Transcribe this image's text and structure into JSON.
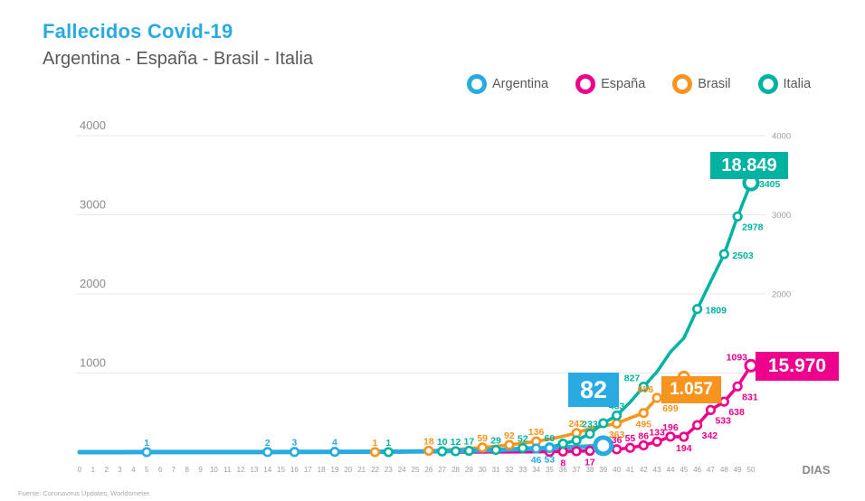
{
  "header": {
    "title": "Fallecidos Covid-19",
    "subtitle": "Argentina - España - Brasil - Italia"
  },
  "footer": {
    "source": "Fuente: Coronavirus Updates, Worldometer."
  },
  "axis": {
    "x_label": "DIAS",
    "x_ticks": [
      0,
      1,
      2,
      3,
      4,
      5,
      6,
      7,
      8,
      9,
      10,
      11,
      12,
      13,
      14,
      15,
      16,
      17,
      18,
      19,
      20,
      21,
      22,
      23,
      24,
      25,
      26,
      27,
      28,
      29,
      30,
      31,
      32,
      33,
      34,
      35,
      36,
      37,
      38,
      39,
      40,
      41,
      42,
      43,
      44,
      45,
      46,
      47,
      48,
      49,
      50
    ],
    "y_ticks": [
      1000,
      2000,
      3000,
      4000
    ]
  },
  "colors": {
    "grid": "#E8E8E8",
    "axis_text": "#898B8E",
    "axis_text_small": "#9B9DA0",
    "title": "#29ABE2",
    "subtitle": "#58595B"
  },
  "chart_data": {
    "type": "line",
    "title": "Fallecidos Covid-19",
    "subtitle": "Argentina - España - Brasil - Italia",
    "xlabel": "DIAS",
    "x_range": [
      0,
      50
    ],
    "ylim": [
      0,
      4000
    ],
    "grid": "horizontal",
    "legend_position": "top-right",
    "series": [
      {
        "name": "Argentina",
        "color": "#29ABE2",
        "width": 5,
        "callout": "82",
        "points": [
          {
            "d": 0,
            "v": 0
          },
          {
            "d": 5,
            "v": 1,
            "l": "1",
            "p": "a",
            "m": 1
          },
          {
            "d": 10,
            "v": 1
          },
          {
            "d": 14,
            "v": 2,
            "l": "2",
            "p": "a",
            "m": 1
          },
          {
            "d": 16,
            "v": 3,
            "l": "3",
            "p": "a",
            "m": 1
          },
          {
            "d": 19,
            "v": 4,
            "l": "4",
            "p": "a",
            "m": 1
          },
          {
            "d": 23,
            "v": 6
          },
          {
            "d": 27,
            "v": 12
          },
          {
            "d": 31,
            "v": 26
          },
          {
            "d": 34,
            "v": 46,
            "l": "46",
            "p": "b",
            "m": 1
          },
          {
            "d": 35,
            "v": 53,
            "l": "53",
            "p": "b",
            "m": 1
          },
          {
            "d": 37,
            "v": 64
          },
          {
            "d": 39,
            "v": 82,
            "m": "end"
          }
        ]
      },
      {
        "name": "España",
        "color": "#EC008C",
        "width": 3.5,
        "callout": "15.970",
        "points": [
          {
            "d": 28,
            "v": 0
          },
          {
            "d": 31,
            "v": 1
          },
          {
            "d": 33,
            "v": 3
          },
          {
            "d": 35,
            "v": 5,
            "m": 1
          },
          {
            "d": 36,
            "v": 8,
            "l": "8",
            "p": "b",
            "m": 1
          },
          {
            "d": 37,
            "v": 12,
            "m": 1
          },
          {
            "d": 38,
            "v": 17,
            "l": "17",
            "p": "b",
            "m": 1
          },
          {
            "d": 39,
            "v": 28,
            "m": 1
          },
          {
            "d": 40,
            "v": 36,
            "l": "36",
            "p": "a",
            "m": 1
          },
          {
            "d": 41,
            "v": 55,
            "l": "55",
            "p": "a",
            "m": 1
          },
          {
            "d": 42,
            "v": 86,
            "l": "86",
            "p": "a",
            "m": 1
          },
          {
            "d": 43,
            "v": 133,
            "l": "133",
            "p": "a",
            "m": 1
          },
          {
            "d": 44,
            "v": 196,
            "l": "196",
            "p": "a",
            "m": 1
          },
          {
            "d": 45,
            "v": 194,
            "l": "194",
            "p": "b",
            "m": 1
          },
          {
            "d": 46,
            "v": 342,
            "l": "342",
            "p": "br",
            "m": 1
          },
          {
            "d": 47,
            "v": 533,
            "l": "533",
            "p": "br",
            "m": 1
          },
          {
            "d": 48,
            "v": 638,
            "l": "638",
            "p": "br",
            "m": 1
          },
          {
            "d": 49,
            "v": 831,
            "l": "831",
            "p": "br",
            "m": 1
          },
          {
            "d": 50,
            "v": 1093,
            "l": "1093",
            "p": "tl",
            "m": "end"
          }
        ]
      },
      {
        "name": "Brasil",
        "color": "#F7941D",
        "width": 3.5,
        "callout": "1.057",
        "points": [
          {
            "d": 20,
            "v": 0
          },
          {
            "d": 22,
            "v": 1,
            "l": "1",
            "p": "a",
            "m": 1
          },
          {
            "d": 24,
            "v": 4
          },
          {
            "d": 26,
            "v": 18,
            "l": "18",
            "p": "a",
            "m": 1
          },
          {
            "d": 28,
            "v": 34
          },
          {
            "d": 30,
            "v": 59,
            "l": "59",
            "p": "a",
            "m": 1
          },
          {
            "d": 32,
            "v": 92,
            "l": "92",
            "p": "a",
            "m": 1
          },
          {
            "d": 33,
            "v": 114
          },
          {
            "d": 34,
            "v": 136,
            "l": "136",
            "p": "a",
            "m": 1
          },
          {
            "d": 35,
            "v": 165
          },
          {
            "d": 36,
            "v": 201
          },
          {
            "d": 37,
            "v": 242,
            "l": "242",
            "p": "a",
            "m": 1
          },
          {
            "d": 38,
            "v": 299
          },
          {
            "d": 39,
            "v": 330
          },
          {
            "d": 40,
            "v": 363,
            "l": "363",
            "p": "b",
            "m": 1
          },
          {
            "d": 41,
            "v": 432
          },
          {
            "d": 42,
            "v": 495,
            "l": "495",
            "p": "b",
            "m": 1
          },
          {
            "d": 43,
            "v": 686,
            "l": "686",
            "p": "tl",
            "m": 1
          },
          {
            "d": 44,
            "v": 699,
            "l": "699",
            "p": "b",
            "m": 1
          },
          {
            "d": 45,
            "v": 950,
            "m": "end"
          }
        ]
      },
      {
        "name": "Italia",
        "color": "#00B2A2",
        "width": 3.5,
        "callout": "18.849",
        "points": [
          {
            "d": 20,
            "v": 0
          },
          {
            "d": 23,
            "v": 1,
            "l": "1",
            "p": "a",
            "m": 1
          },
          {
            "d": 25,
            "v": 5
          },
          {
            "d": 27,
            "v": 10,
            "l": "10",
            "p": "a",
            "m": 1
          },
          {
            "d": 28,
            "v": 12,
            "l": "12",
            "p": "a",
            "m": 1
          },
          {
            "d": 29,
            "v": 17,
            "l": "17",
            "p": "a",
            "m": 1
          },
          {
            "d": 31,
            "v": 29,
            "l": "29",
            "p": "a",
            "m": 1
          },
          {
            "d": 33,
            "v": 52,
            "l": "52",
            "p": "a",
            "m": 1
          },
          {
            "d": 35,
            "v": 60,
            "l": "60",
            "p": "a",
            "m": 1
          },
          {
            "d": 36,
            "v": 107,
            "m": 1
          },
          {
            "d": 37,
            "v": 148,
            "m": 1
          },
          {
            "d": 38,
            "v": 233,
            "l": "233",
            "p": "a",
            "m": 1
          },
          {
            "d": 39,
            "v": 366,
            "m": 1
          },
          {
            "d": 40,
            "v": 463,
            "l": "463",
            "p": "a",
            "m": 1
          },
          {
            "d": 41,
            "v": 631
          },
          {
            "d": 42,
            "v": 827,
            "l": "827",
            "p": "tl",
            "m": 1
          },
          {
            "d": 43,
            "v": 1016
          },
          {
            "d": 44,
            "v": 1266
          },
          {
            "d": 45,
            "v": 1441
          },
          {
            "d": 46,
            "v": 1809,
            "l": "1809",
            "p": "r",
            "m": 1
          },
          {
            "d": 47,
            "v": 2158
          },
          {
            "d": 48,
            "v": 2503,
            "l": "2503",
            "p": "r",
            "m": 1
          },
          {
            "d": 49,
            "v": 2978,
            "l": "2978",
            "p": "br",
            "m": 1
          },
          {
            "d": 50,
            "v": 3405,
            "l": "3405",
            "p": "r",
            "m": "end"
          }
        ]
      }
    ]
  }
}
